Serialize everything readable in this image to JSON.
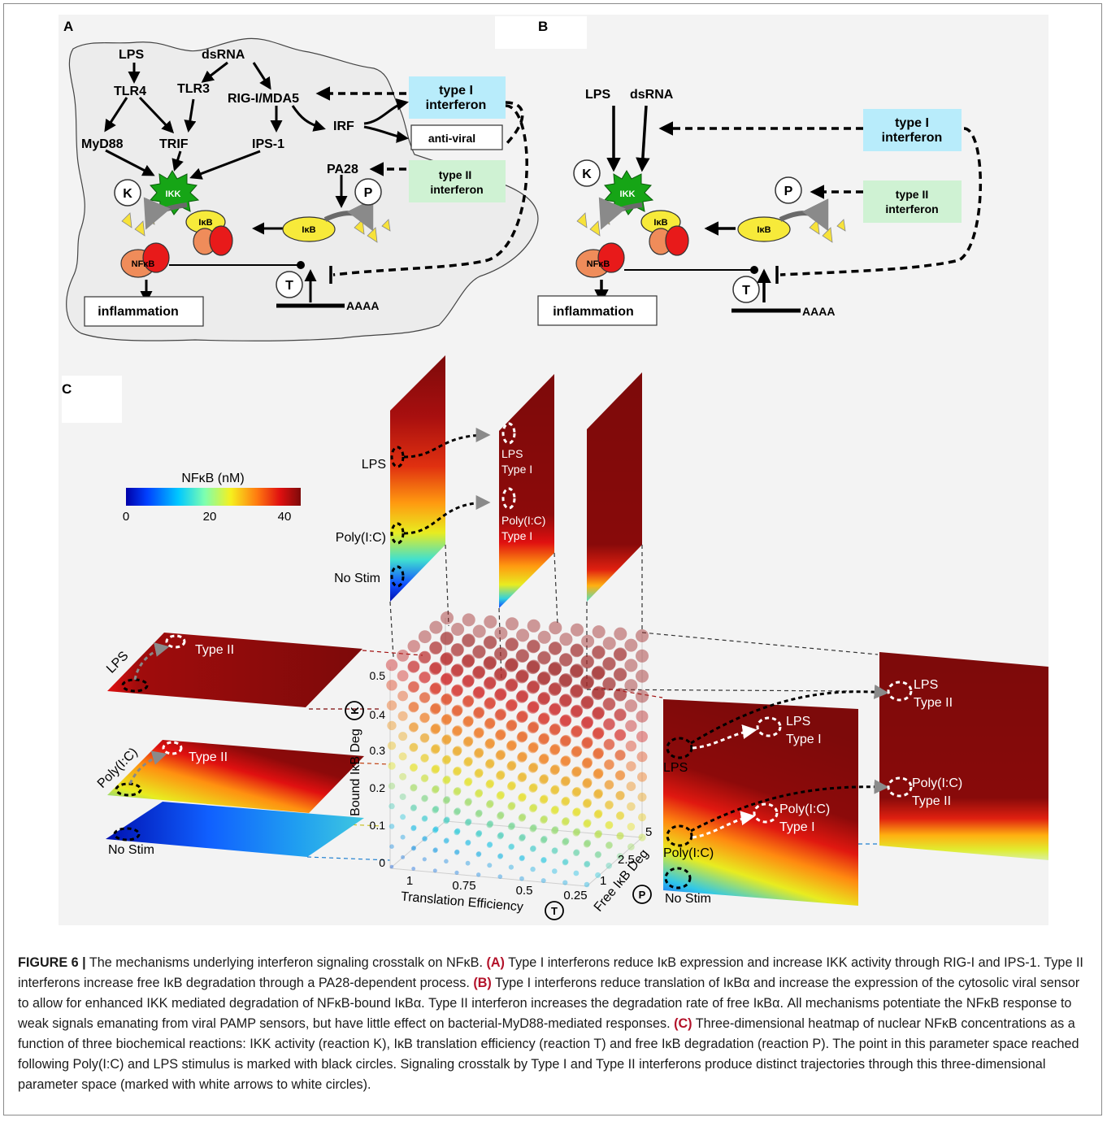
{
  "panels": {
    "a": "A",
    "b": "B",
    "c": "C"
  },
  "panelA": {
    "lps": "LPS",
    "dsrna": "dsRNA",
    "tlr4": "TLR4",
    "tlr3": "TLR3",
    "rig": "RIG-I/MDA5",
    "myd88": "MyD88",
    "trif": "TRIF",
    "ips1": "IPS-1",
    "irf": "IRF",
    "ikk": "IKK",
    "ikb": "IκB",
    "nfkb": "NFκB",
    "pa28": "PA28",
    "k": "K",
    "p": "P",
    "t": "T",
    "aaaa": "AAAA",
    "type1_line1": "type I",
    "type1_line2": "interferon",
    "type2_line1": "type II",
    "type2_line2": "interferon",
    "antiviral": "anti-viral",
    "inflammation": "inflammation"
  },
  "panelB": {
    "lps": "LPS",
    "dsrna": "dsRNA",
    "ikk": "IKK",
    "ikb": "IκB",
    "nfkb": "NFκB",
    "k": "K",
    "p": "P",
    "t": "T",
    "aaaa": "AAAA",
    "type1_line1": "type I",
    "type1_line2": "interferon",
    "type2_line1": "type II",
    "type2_line2": "interferon",
    "inflammation": "inflammation"
  },
  "panelC": {
    "colorbar": {
      "title": "NFκB (nM)",
      "ticks": [
        "0",
        "20",
        "40"
      ]
    },
    "top_labels": {
      "lps": "LPS",
      "polyic": "Poly(I:C)",
      "nostim": "No Stim"
    },
    "top_mid_labels": {
      "lps1": "LPS",
      "lps2": "Type I",
      "poly1": "Poly(I:C)",
      "poly2": "Type I"
    },
    "left_labels": {
      "lps": "LPS",
      "lps_t2": "Type II",
      "polyic": "Poly(I:C)",
      "poly_t2": "Type II",
      "nostim": "No Stim"
    },
    "right_labels": {
      "lps": "LPS",
      "lps_t1a": "LPS",
      "lps_t1b": "Type I",
      "polyic": "Poly(I:C)",
      "poly_t1a": "Poly(I:C)",
      "poly_t1b": "Type I",
      "nostim": "No Stim",
      "lps_t2a": "LPS",
      "lps_t2b": "Type II",
      "poly_t2a": "Poly(I:C)",
      "poly_t2b": "Type II"
    },
    "axes": {
      "y_label": "Bound IκB Deg",
      "y_ticks": [
        "0",
        "0.1",
        "0.2",
        "0.3",
        "0.4",
        "0.5"
      ],
      "x_label": "Translation Efficiency",
      "x_ticks": [
        "1",
        "0.75",
        "0.5",
        "0.25"
      ],
      "z_label": "Free IκB Deg",
      "z_ticks": [
        "1",
        "2.5",
        "5"
      ],
      "k": "K",
      "t": "T",
      "p": "P"
    },
    "colors": {
      "cold": "#1020c8",
      "mid": "#f6e71e",
      "hot": "#7d0a0a"
    }
  },
  "caption": {
    "fig": "FIGURE 6 |",
    "t0": " The mechanisms underlying interferon signaling crosstalk on NFκB. ",
    "la": "(A)",
    "t1": " Type I interferons reduce IκB expression and increase IKK activity through RIG-I and IPS-1. Type II interferons increase free IκB degradation through a PA28-dependent process. ",
    "lb": "(B)",
    "t2": " Type I interferons reduce translation of IκBα and increase the expression of the cytosolic viral sensor to allow for enhanced IKK mediated degradation of NFκB-bound IκBα. Type II interferon increases the degradation rate of free IκBα. All mechanisms potentiate the NFκB response to weak signals emanating from viral PAMP sensors, but have little effect on bacterial-MyD88-mediated responses. ",
    "lc": "(C)",
    "t3": " Three-dimensional heatmap of nuclear NFκB concentrations as a function of three biochemical reactions: IKK activity (reaction K), IκB translation efficiency (reaction T) and free IκB degradation (reaction P). The point in this parameter space reached following Poly(I:C) and LPS stimulus is marked with black circles. Signaling crosstalk by Type I and Type II interferons produce distinct trajectories through this three-dimensional parameter space (marked with white arrows to white circles)."
  }
}
